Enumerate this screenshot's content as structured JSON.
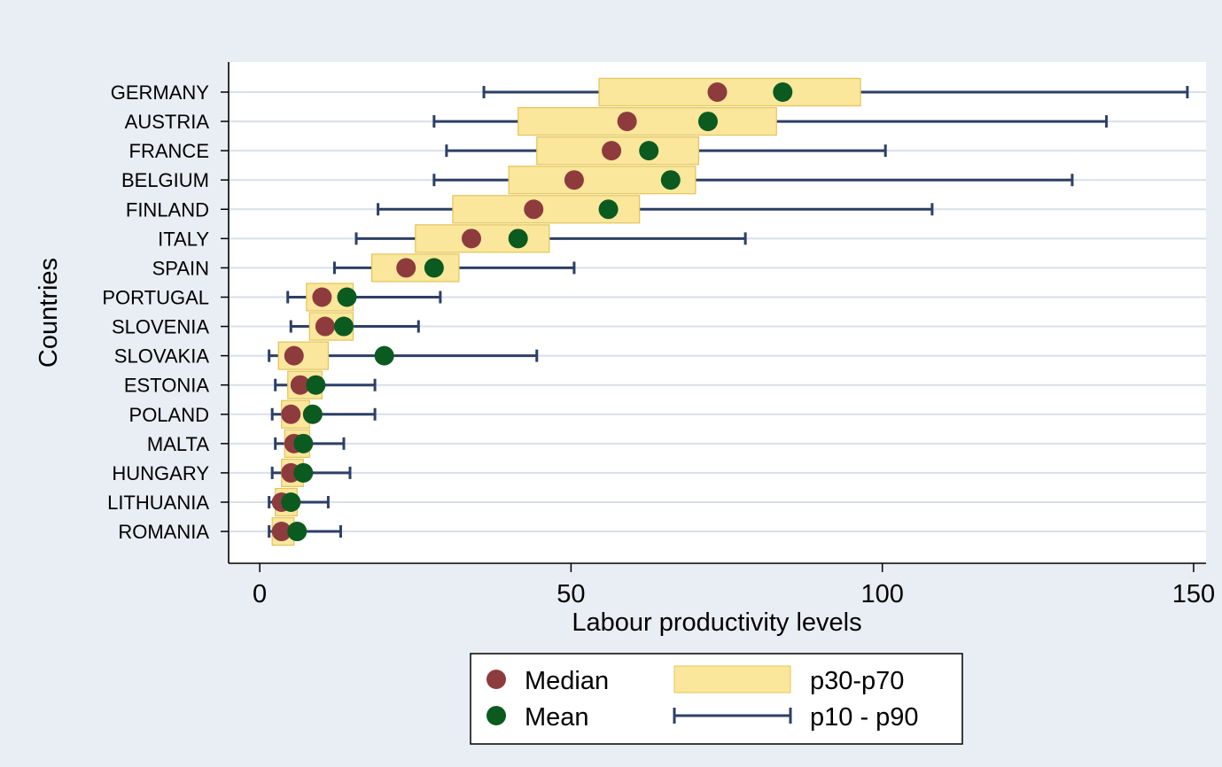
{
  "chart_data": {
    "type": "box-range",
    "orientation": "horizontal",
    "xlabel": "Labour productivity levels",
    "ylabel": "Countries",
    "xlim": [
      -5,
      152
    ],
    "xticks": [
      0,
      50,
      100,
      150
    ],
    "grid": true,
    "legend_position": "bottom",
    "colors": {
      "background": "#e9eef4",
      "plot_area": "#ffffff",
      "gridline": "#d8e0ea",
      "box_fill": "#fbe79b",
      "box_stroke": "#e2c45a",
      "whisker": "#2c3f66",
      "median": "#8e3b3e",
      "mean": "#0b5a1f"
    },
    "legend": [
      {
        "key": "median",
        "label": "Median"
      },
      {
        "key": "box",
        "label": "p30-p70"
      },
      {
        "key": "mean",
        "label": "Mean"
      },
      {
        "key": "whisker",
        "label": "p10 - p90"
      }
    ],
    "countries": [
      {
        "name": "GERMANY",
        "p10": 36.0,
        "p30": 54.5,
        "median": 73.5,
        "p70": 96.5,
        "p90": 149.0,
        "mean": 84.0
      },
      {
        "name": "AUSTRIA",
        "p10": 28.0,
        "p30": 41.5,
        "median": 59.0,
        "p70": 83.0,
        "p90": 136.0,
        "mean": 72.0
      },
      {
        "name": "FRANCE",
        "p10": 30.0,
        "p30": 44.5,
        "median": 56.5,
        "p70": 70.5,
        "p90": 100.5,
        "mean": 62.5
      },
      {
        "name": "BELGIUM",
        "p10": 28.0,
        "p30": 40.0,
        "median": 50.5,
        "p70": 70.0,
        "p90": 130.5,
        "mean": 66.0
      },
      {
        "name": "FINLAND",
        "p10": 19.0,
        "p30": 31.0,
        "median": 44.0,
        "p70": 61.0,
        "p90": 108.0,
        "mean": 56.0
      },
      {
        "name": "ITALY",
        "p10": 15.5,
        "p30": 25.0,
        "median": 34.0,
        "p70": 46.5,
        "p90": 78.0,
        "mean": 41.5
      },
      {
        "name": "SPAIN",
        "p10": 12.0,
        "p30": 18.0,
        "median": 23.5,
        "p70": 32.0,
        "p90": 50.5,
        "mean": 28.0
      },
      {
        "name": "PORTUGAL",
        "p10": 4.5,
        "p30": 7.5,
        "median": 10.0,
        "p70": 15.0,
        "p90": 29.0,
        "mean": 14.0
      },
      {
        "name": "SLOVENIA",
        "p10": 5.0,
        "p30": 8.0,
        "median": 10.5,
        "p70": 15.0,
        "p90": 25.5,
        "mean": 13.5
      },
      {
        "name": "SLOVAKIA",
        "p10": 1.5,
        "p30": 3.0,
        "median": 5.5,
        "p70": 11.0,
        "p90": 44.5,
        "mean": 20.0
      },
      {
        "name": "ESTONIA",
        "p10": 2.5,
        "p30": 4.5,
        "median": 6.5,
        "p70": 10.0,
        "p90": 18.5,
        "mean": 9.0
      },
      {
        "name": "POLAND",
        "p10": 2.0,
        "p30": 3.5,
        "median": 5.0,
        "p70": 8.0,
        "p90": 18.5,
        "mean": 8.5
      },
      {
        "name": "MALTA",
        "p10": 2.5,
        "p30": 4.0,
        "median": 5.5,
        "p70": 8.0,
        "p90": 13.5,
        "mean": 7.0
      },
      {
        "name": "HUNGARY",
        "p10": 2.0,
        "p30": 3.5,
        "median": 5.0,
        "p70": 7.0,
        "p90": 14.5,
        "mean": 7.0
      },
      {
        "name": "LITHUANIA",
        "p10": 1.5,
        "p30": 2.5,
        "median": 3.5,
        "p70": 6.0,
        "p90": 11.0,
        "mean": 5.0
      },
      {
        "name": "ROMANIA",
        "p10": 1.5,
        "p30": 2.0,
        "median": 3.5,
        "p70": 5.5,
        "p90": 13.0,
        "mean": 6.0
      }
    ]
  }
}
